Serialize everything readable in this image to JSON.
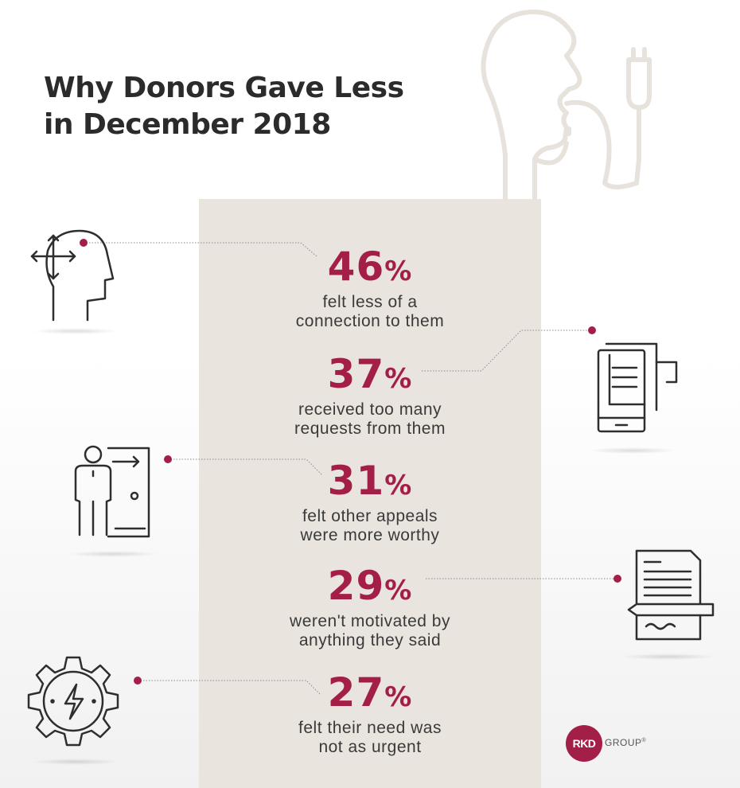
{
  "title": {
    "line1": "Why Donors Gave Less",
    "line2": "in December 2018"
  },
  "chart_data": {
    "type": "table",
    "title": "Why Donors Gave Less in December 2018",
    "rows": [
      {
        "value": 46,
        "label": "felt less of a connection to them",
        "display": "46",
        "unit": "%",
        "line1": "felt less of a",
        "line2": "connection to them",
        "icon": "head-arrows-icon"
      },
      {
        "value": 37,
        "label": "received too many requests from them",
        "display": "37",
        "unit": "%",
        "line1": "received too many",
        "line2": "requests from them",
        "icon": "phone-receipt-icon"
      },
      {
        "value": 31,
        "label": "felt other appeals were more worthy",
        "display": "31",
        "unit": "%",
        "line1": "felt other appeals",
        "line2": "were more worthy",
        "icon": "person-exit-door-icon"
      },
      {
        "value": 29,
        "label": "weren't motivated by anything they said",
        "display": "29",
        "unit": "%",
        "line1": "weren't motivated by",
        "line2": "anything they said",
        "icon": "document-pen-icon"
      },
      {
        "value": 27,
        "label": "felt their need was not as urgent",
        "display": "27",
        "unit": "%",
        "line1": "felt their need was",
        "line2": "not as urgent",
        "icon": "gear-lightning-icon"
      }
    ]
  },
  "logo": {
    "mark": "RKD",
    "word": "GROUP",
    "registered": "®"
  },
  "colors": {
    "accent": "#a41f48",
    "panel": "#e9e4de",
    "text": "#3a3a3a",
    "title": "#2b2b2b",
    "icon": "#2e2e2e",
    "head_outline": "#e7e2dc"
  }
}
